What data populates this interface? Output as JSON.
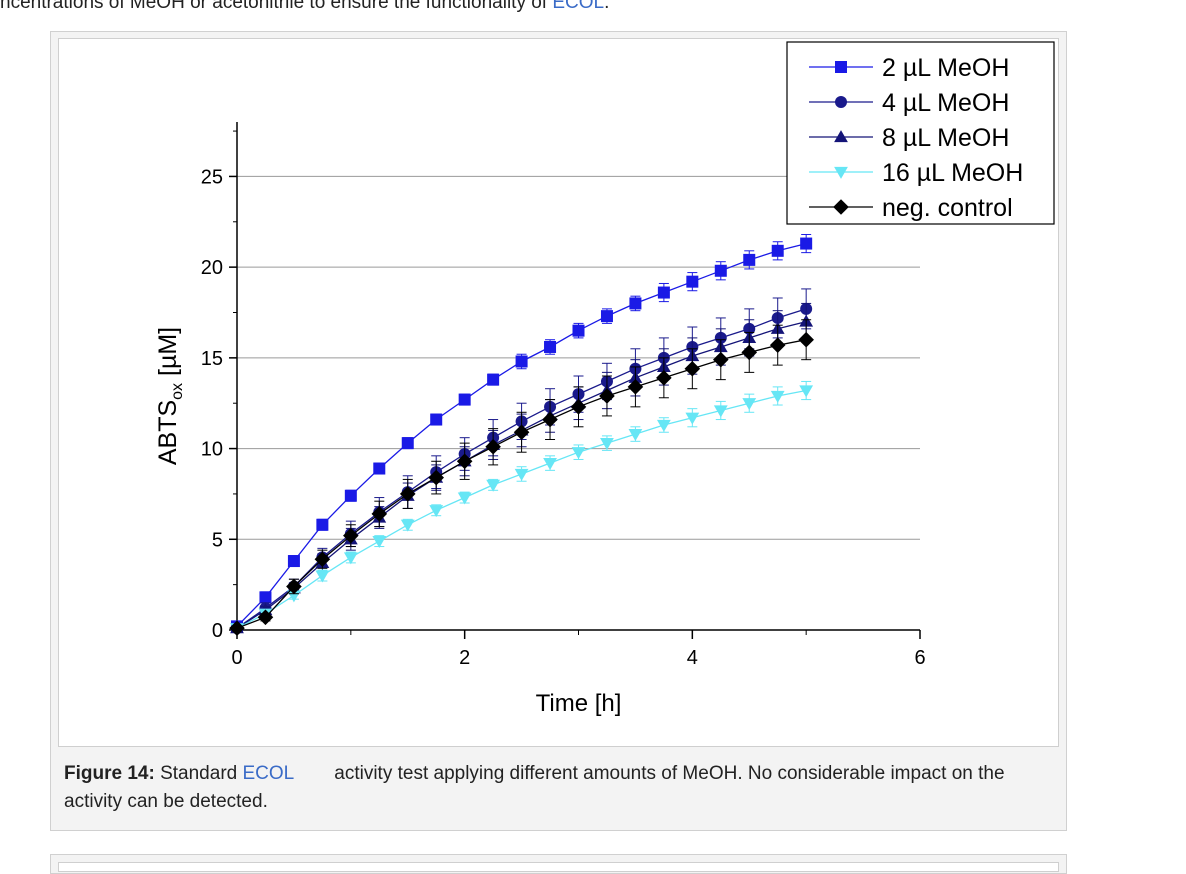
{
  "intro": {
    "text": "ncentrations of MeOH or acetonitrile to ensure the functionality of",
    "link": "ECOL",
    "suffix": "."
  },
  "caption": {
    "label": "Figure 14:",
    "pre": "Standard",
    "link": "ECOL",
    "post": "activity test applying different amounts of MeOH. No considerable impact on the activity can be detected."
  },
  "chart_data": {
    "type": "line",
    "title": "",
    "xlabel": "Time [h]",
    "ylabel_main": "ABTS",
    "ylabel_sub": "ox",
    "ylabel_unit": " [µM]",
    "xlim": [
      0,
      6
    ],
    "ylim": [
      0,
      28
    ],
    "xticks": [
      0,
      2,
      4,
      6
    ],
    "yticks": [
      0,
      5,
      10,
      15,
      20,
      25
    ],
    "grid": "horizontal",
    "legend_position": "top-right",
    "x": [
      0,
      0.25,
      0.5,
      0.75,
      1,
      1.25,
      1.5,
      1.75,
      2,
      2.25,
      2.5,
      2.75,
      3,
      3.25,
      3.5,
      3.75,
      4,
      4.25,
      4.5,
      4.75,
      5
    ],
    "series": [
      {
        "name": "2 µL MeOH",
        "marker": "square",
        "color": "#1a1ae6",
        "values": [
          0.2,
          1.8,
          3.8,
          5.8,
          7.4,
          8.9,
          10.3,
          11.6,
          12.7,
          13.8,
          14.8,
          15.6,
          16.5,
          17.3,
          18.0,
          18.6,
          19.2,
          19.8,
          20.4,
          20.9,
          21.3
        ],
        "errors": [
          0.1,
          0.3,
          0.3,
          0.3,
          0.3,
          0.3,
          0.3,
          0.3,
          0.3,
          0.3,
          0.4,
          0.4,
          0.4,
          0.4,
          0.4,
          0.5,
          0.5,
          0.5,
          0.5,
          0.5,
          0.5
        ]
      },
      {
        "name": "4 µL MeOH",
        "marker": "circle",
        "color": "#1a1a8c",
        "values": [
          0.1,
          1.2,
          2.4,
          4.0,
          5.3,
          6.5,
          7.6,
          8.7,
          9.7,
          10.6,
          11.5,
          12.3,
          13.0,
          13.7,
          14.4,
          15.0,
          15.6,
          16.1,
          16.6,
          17.2,
          17.7
        ],
        "errors": [
          0.1,
          0.3,
          0.4,
          0.5,
          0.7,
          0.8,
          0.9,
          0.9,
          0.9,
          1.0,
          1.0,
          1.0,
          1.0,
          1.0,
          1.1,
          1.1,
          1.1,
          1.1,
          1.1,
          1.1,
          1.1
        ]
      },
      {
        "name": "8 µL MeOH",
        "marker": "triangle-up",
        "color": "#141478",
        "values": [
          0.1,
          1.1,
          2.3,
          3.7,
          5.0,
          6.2,
          7.4,
          8.4,
          9.3,
          10.2,
          11.0,
          11.8,
          12.5,
          13.2,
          13.9,
          14.5,
          15.1,
          15.6,
          16.1,
          16.6,
          17.0
        ],
        "errors": [
          0.1,
          0.2,
          0.3,
          0.5,
          0.6,
          0.6,
          0.7,
          0.7,
          0.8,
          0.8,
          0.9,
          0.9,
          0.9,
          1.0,
          1.0,
          1.0,
          1.0,
          1.0,
          1.0,
          1.0,
          1.0
        ]
      },
      {
        "name": "16 µL MeOH",
        "marker": "triangle-down",
        "color": "#66e6f5",
        "values": [
          0.1,
          0.9,
          1.9,
          3.0,
          4.0,
          4.9,
          5.8,
          6.6,
          7.3,
          8.0,
          8.6,
          9.2,
          9.8,
          10.3,
          10.8,
          11.3,
          11.7,
          12.1,
          12.5,
          12.9,
          13.2
        ],
        "errors": [
          0.1,
          0.2,
          0.2,
          0.3,
          0.3,
          0.3,
          0.3,
          0.3,
          0.3,
          0.3,
          0.4,
          0.4,
          0.4,
          0.4,
          0.4,
          0.4,
          0.5,
          0.5,
          0.5,
          0.5,
          0.5
        ]
      },
      {
        "name": "neg. control",
        "marker": "diamond",
        "color": "#000000",
        "values": [
          0.1,
          0.7,
          2.4,
          3.9,
          5.2,
          6.4,
          7.5,
          8.4,
          9.3,
          10.1,
          10.9,
          11.6,
          12.3,
          12.9,
          13.4,
          13.9,
          14.4,
          14.9,
          15.3,
          15.7,
          16.0
        ],
        "errors": [
          0.1,
          0.2,
          0.4,
          0.5,
          0.6,
          0.7,
          0.8,
          0.9,
          1.0,
          1.0,
          1.1,
          1.1,
          1.1,
          1.1,
          1.1,
          1.1,
          1.1,
          1.1,
          1.1,
          1.1,
          1.1
        ]
      }
    ]
  }
}
